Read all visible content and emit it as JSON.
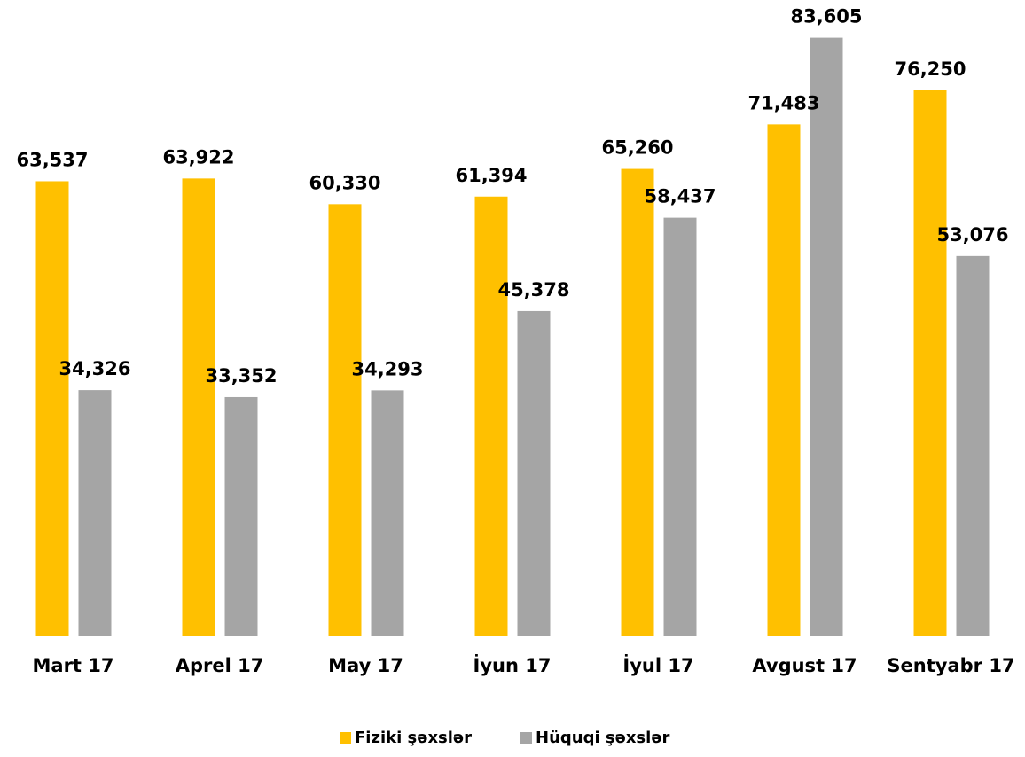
{
  "chart_data": {
    "type": "bar",
    "categories": [
      "Mart 17",
      "Aprel 17",
      "May 17",
      "İyun 17",
      "İyul 17",
      "Avgust 17",
      "Sentyabr 17"
    ],
    "series": [
      {
        "name": "Fiziki şəxslər",
        "color": "#FFC000",
        "values": [
          63537,
          63922,
          60330,
          61394,
          65260,
          71483,
          76250
        ],
        "value_labels": [
          "63,537",
          "63,922",
          "60,330",
          "61,394",
          "65,260",
          "71,483",
          "76,250"
        ]
      },
      {
        "name": "Hüquqi şəxslər",
        "color": "#A5A5A5",
        "values": [
          34326,
          33352,
          34293,
          45378,
          58437,
          83605,
          53076
        ],
        "value_labels": [
          "34,326",
          "33,352",
          "34,293",
          "45,378",
          "58,437",
          "83,605",
          "53,076"
        ]
      }
    ],
    "ylim": [
      0,
      90000
    ],
    "legend": "bottom"
  }
}
